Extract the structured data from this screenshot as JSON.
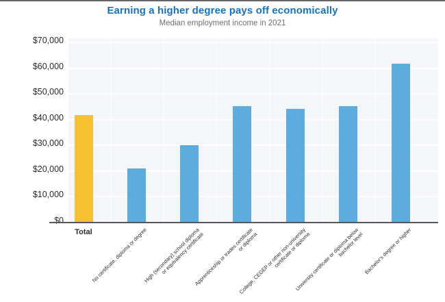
{
  "header": {
    "title": "Earning a higher degree pays off economically",
    "subtitle": "Median employment income in 2021",
    "title_color": "#1673bd",
    "subtitle_color": "#6e6e6e"
  },
  "chart_data": {
    "type": "bar",
    "title": "Earning a higher degree pays off economically",
    "subtitle": "Median employment income in 2021",
    "categories": [
      "Total",
      "No certificate, diploma or degree",
      "High (secondary) school diploma or equivalency certificate",
      "Apprenticeship or trades certificate or diploma",
      "College, CEGEP or other non-university certificate or diploma",
      "University certificate or diploma below bachelor level",
      "Bachelor's degree or higher"
    ],
    "category_label_lines": [
      [
        "Total"
      ],
      [
        "No certificate, diploma or degree"
      ],
      [
        "High (secondary) school diploma",
        "or equivalency certificate"
      ],
      [
        "Apprenticeship or trades certificate",
        "or diploma"
      ],
      [
        "College, CEGEP or other non-university",
        "certificate or diploma"
      ],
      [
        "University certificate or diploma below",
        "bachelor level"
      ],
      [
        "Bachelor's degree or higher"
      ]
    ],
    "values": [
      41500,
      20800,
      29800,
      45000,
      43800,
      45000,
      61500
    ],
    "bar_colors": [
      "#f5c132",
      "#5cacde",
      "#5cacde",
      "#5cacde",
      "#5cacde",
      "#5cacde",
      "#5cacde"
    ],
    "y_tick_labels": [
      "$0",
      "$10,000",
      "$20,000",
      "$30,000",
      "$40,000",
      "$50,000",
      "$60,000",
      "$70,000"
    ],
    "y_tick_values": [
      0,
      10000,
      20000,
      30000,
      40000,
      50000,
      60000,
      70000
    ],
    "ylim": [
      0,
      70000
    ],
    "xlabel": "",
    "ylabel": "",
    "grid": "horizontal",
    "legend": "none",
    "colors": {
      "accent_total": "#f5c132",
      "accent_series": "#5cacde",
      "plot_background": "#f4f6f9",
      "gridline": "#ffffff",
      "axis_line": "#55555b",
      "tick_label_text": "#2b2b2b",
      "category_label_text": "#2b2b2b"
    }
  }
}
